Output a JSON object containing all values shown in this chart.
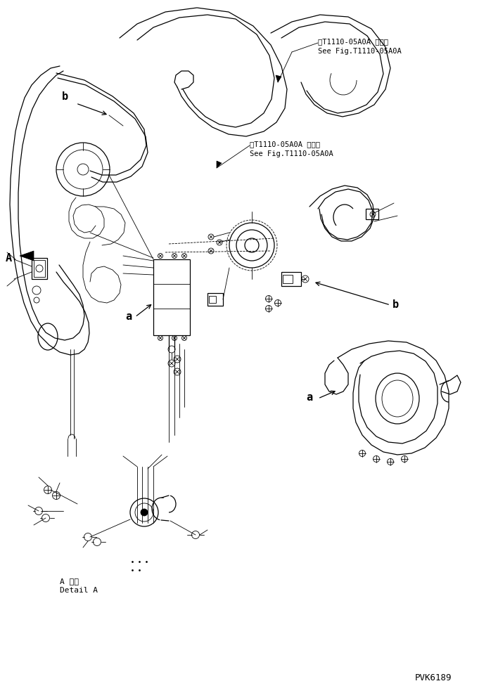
{
  "bg_color": "#ffffff",
  "line_color": "#000000",
  "fig_width": 7.08,
  "fig_height": 9.87,
  "dpi": 100,
  "label_a1": "a",
  "label_b1": "b",
  "label_a2": "a",
  "label_b2": "b",
  "label_A": "A",
  "ref_text1_line1": "第T1110-05A0A 図参照",
  "ref_text1_line2": "See Fig.T1110-05A0A",
  "ref_text2_line1": "第T1110-05A0A 図参照",
  "ref_text2_line2": "See Fig.T1110-05A0A",
  "detail_label_line1": "A 詳細",
  "detail_label_line2": "Detail A",
  "pvk_code": "PVK6189",
  "font_size_ref": 7.5,
  "font_size_labels": 11,
  "font_size_detail": 8,
  "font_size_pvk": 9
}
